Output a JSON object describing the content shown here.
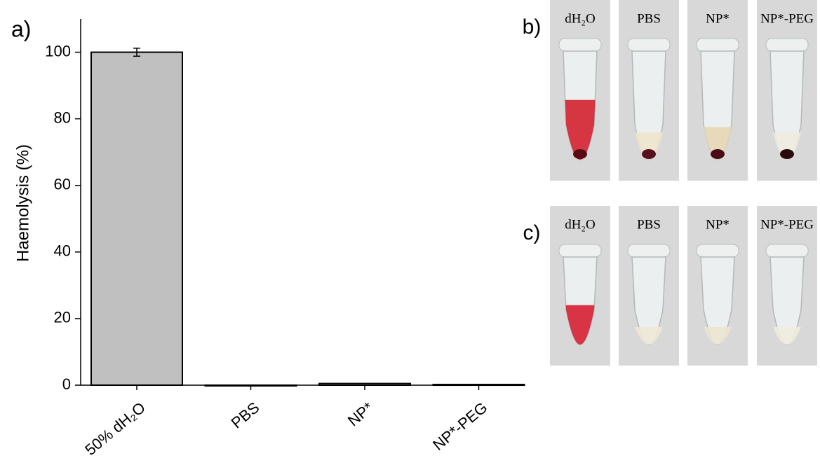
{
  "chart_data": {
    "type": "bar",
    "panel_label": "a)",
    "ylabel": "Haemolysis (%)",
    "categories": [
      "50% dH₂O",
      "PBS",
      "NP*",
      "NP*-PEG"
    ],
    "values": [
      100,
      0,
      0.5,
      0.2
    ],
    "errors": [
      1.2,
      null,
      null,
      null
    ],
    "color": "#c0c0c0",
    "ylim": [
      0,
      110
    ],
    "yticks": [
      0,
      20,
      40,
      60,
      80,
      100
    ]
  },
  "photos": [
    {
      "panel_label": "b)",
      "tubes": [
        "dH₂O",
        "PBS",
        "NP*",
        "NP*-PEG"
      ]
    },
    {
      "panel_label": "c)",
      "tubes": [
        "dH₂O",
        "PBS",
        "NP*",
        "NP*-PEG"
      ]
    }
  ]
}
